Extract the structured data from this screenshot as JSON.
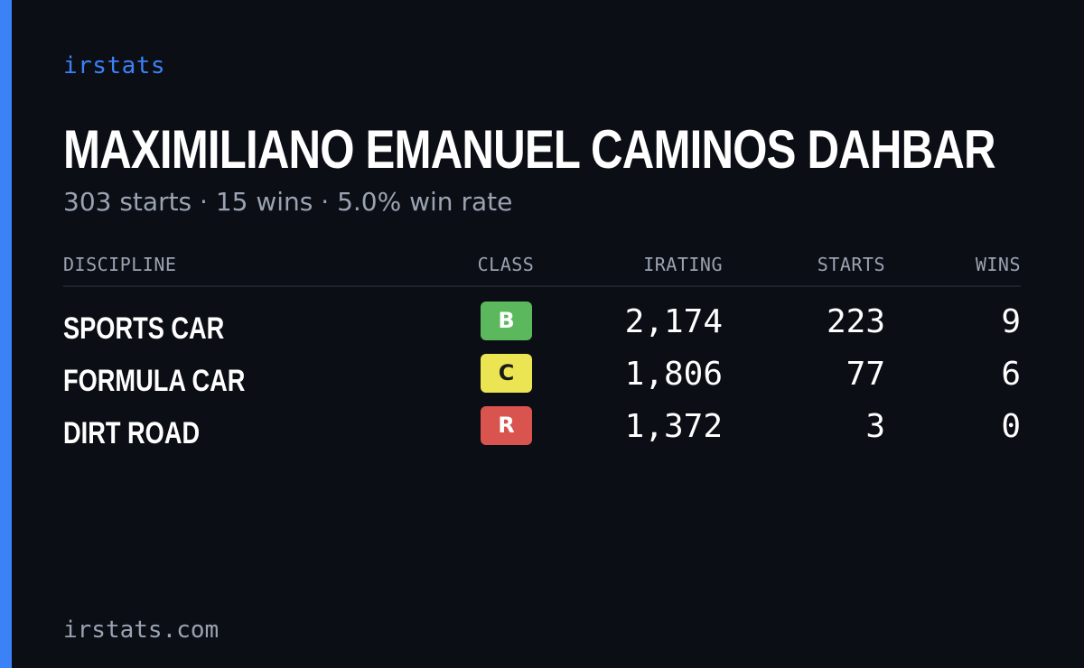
{
  "brand": "irstats",
  "driver": {
    "name": "MAXIMILIANO EMANUEL CAMINOS DAHBAR",
    "summary": "303 starts · 15 wins · 5.0% win rate"
  },
  "table": {
    "headers": {
      "discipline": "DISCIPLINE",
      "class": "CLASS",
      "irating": "IRATING",
      "starts": "STARTS",
      "wins": "WINS"
    },
    "rows": [
      {
        "discipline": "SPORTS CAR",
        "class": "B",
        "irating": "2,174",
        "starts": "223",
        "wins": "9"
      },
      {
        "discipline": "FORMULA CAR",
        "class": "C",
        "irating": "1,806",
        "starts": "77",
        "wins": "6"
      },
      {
        "discipline": "DIRT ROAD",
        "class": "R",
        "irating": "1,372",
        "starts": "3",
        "wins": "0"
      }
    ]
  },
  "footer": "irstats.com",
  "colors": {
    "accent": "#3b82f6",
    "background": "#0b0e15",
    "class_B": "#5cb85c",
    "class_C": "#ece553",
    "class_R": "#d9534f",
    "class_B_text": "#ffffff",
    "class_C_text": "#1a1a1a",
    "class_R_text": "#ffffff"
  }
}
